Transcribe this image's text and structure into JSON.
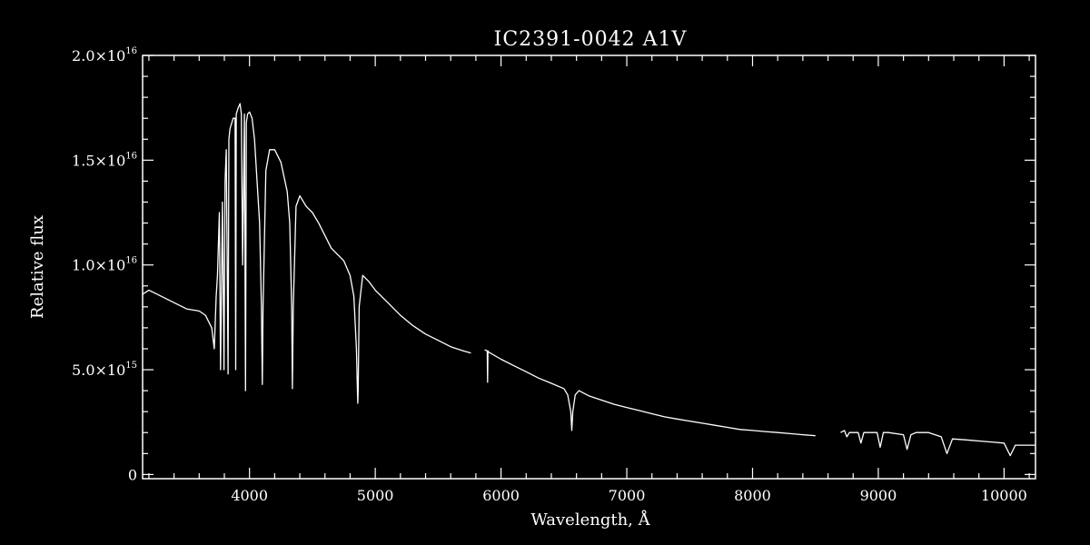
{
  "chart_data": {
    "type": "line",
    "title": "IC2391-0042   A1V",
    "xlabel": "Wavelength, Å",
    "ylabel": "Relative flux",
    "xlim": [
      3150,
      10250
    ],
    "ylim": [
      -200000000000000,
      20000000000000000
    ],
    "x_ticks": [
      {
        "value": 4000,
        "label": "4000"
      },
      {
        "value": 5000,
        "label": "5000"
      },
      {
        "value": 6000,
        "label": "6000"
      },
      {
        "value": 7000,
        "label": "7000"
      },
      {
        "value": 8000,
        "label": "8000"
      },
      {
        "value": 9000,
        "label": "9000"
      },
      {
        "value": 10000,
        "label": "10000"
      }
    ],
    "y_ticks": [
      {
        "value": 0,
        "mantissa": "0",
        "exponent": ""
      },
      {
        "value": 5000000000000000,
        "mantissa": "5.0×10",
        "exponent": "15"
      },
      {
        "value": 10000000000000000,
        "mantissa": "1.0×10",
        "exponent": "16"
      },
      {
        "value": 15000000000000000,
        "mantissa": "1.5×10",
        "exponent": "16"
      },
      {
        "value": 20000000000000000,
        "mantissa": "2.0×10",
        "exponent": "16"
      }
    ],
    "x_minor_step": 200,
    "y_minor_step": 1000000000000000,
    "line_color": "#ffffff",
    "background": "#000000",
    "grid": false,
    "y_unit": "1e16",
    "series_segments": [
      {
        "x": [
          3150,
          3200,
          3300,
          3400,
          3500,
          3600,
          3650,
          3700,
          3720,
          3735,
          3745,
          3760,
          3770,
          3785,
          3797,
          3806,
          3815,
          3830,
          3836,
          3845,
          3860,
          3870,
          3885,
          3890,
          3895,
          3910,
          3925,
          3935,
          3945,
          3955,
          3960,
          3968,
          3975,
          3985,
          4000,
          4020,
          4040,
          4060,
          4080,
          4095,
          4102,
          4108,
          4130,
          4160,
          4200,
          4250,
          4300,
          4320,
          4335,
          4341,
          4348,
          4370,
          4400,
          4450,
          4500,
          4550,
          4600,
          4650,
          4700,
          4750,
          4800,
          4830,
          4850,
          4858,
          4861,
          4864,
          4872,
          4900,
          4950,
          5000,
          5100,
          5200,
          5300,
          5400,
          5500,
          5600,
          5700,
          5760
        ],
        "y": [
          0.86,
          0.88,
          0.85,
          0.82,
          0.79,
          0.78,
          0.76,
          0.7,
          0.6,
          0.85,
          0.95,
          1.25,
          0.5,
          1.3,
          0.5,
          1.4,
          1.55,
          0.48,
          1.6,
          1.65,
          1.68,
          1.7,
          1.7,
          0.5,
          1.72,
          1.75,
          1.77,
          1.72,
          1.0,
          1.5,
          1.72,
          0.4,
          1.68,
          1.72,
          1.73,
          1.7,
          1.6,
          1.4,
          1.2,
          0.8,
          0.43,
          0.8,
          1.45,
          1.55,
          1.55,
          1.49,
          1.35,
          1.2,
          0.8,
          0.41,
          0.8,
          1.28,
          1.33,
          1.28,
          1.25,
          1.2,
          1.14,
          1.08,
          1.05,
          1.02,
          0.95,
          0.85,
          0.6,
          0.4,
          0.34,
          0.4,
          0.8,
          0.95,
          0.92,
          0.88,
          0.82,
          0.76,
          0.71,
          0.67,
          0.64,
          0.61,
          0.59,
          0.58
        ]
      },
      {
        "x": [
          5870,
          5890,
          5893,
          5896,
          5900,
          6000,
          6100,
          6200,
          6300,
          6400,
          6500,
          6530,
          6555,
          6563,
          6571,
          6590,
          6620,
          6700,
          6800,
          6900,
          7000,
          7100,
          7200,
          7300,
          7400,
          7500,
          7600,
          7700,
          7800,
          7900,
          8000,
          8100,
          8200,
          8300,
          8400,
          8500
        ],
        "y": [
          0.595,
          0.59,
          0.44,
          0.59,
          0.585,
          0.55,
          0.52,
          0.49,
          0.46,
          0.435,
          0.41,
          0.38,
          0.3,
          0.21,
          0.3,
          0.38,
          0.4,
          0.375,
          0.355,
          0.335,
          0.32,
          0.305,
          0.29,
          0.275,
          0.265,
          0.255,
          0.245,
          0.235,
          0.225,
          0.215,
          0.21,
          0.205,
          0.2,
          0.195,
          0.19,
          0.185
        ]
      },
      {
        "x": [
          8700,
          8730,
          8750,
          8770,
          8800,
          8840,
          8862,
          8885,
          8920,
          8990,
          9015,
          9040,
          9080,
          9200,
          9229,
          9260,
          9300,
          9400,
          9500,
          9546,
          9590,
          9700,
          9800,
          9900,
          10000,
          10049,
          10090,
          10250
        ],
        "y": [
          0.2,
          0.21,
          0.18,
          0.2,
          0.2,
          0.2,
          0.15,
          0.2,
          0.2,
          0.2,
          0.13,
          0.2,
          0.2,
          0.19,
          0.12,
          0.19,
          0.2,
          0.2,
          0.18,
          0.1,
          0.17,
          0.165,
          0.16,
          0.155,
          0.15,
          0.09,
          0.14,
          0.14
        ]
      }
    ]
  }
}
